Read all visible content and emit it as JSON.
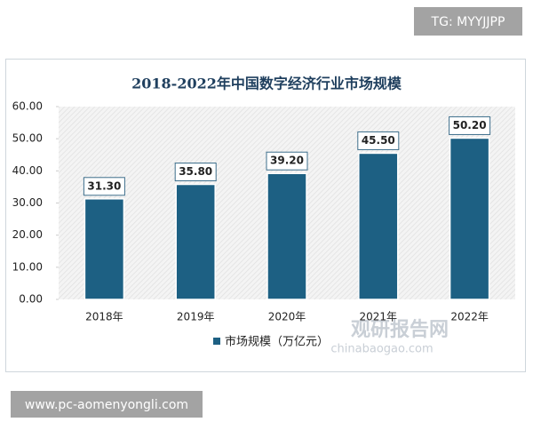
{
  "tag": "TG: MYYJJPP",
  "footer_link": "www.pc-aomenyongli.com",
  "watermark": {
    "name": "观研报告网",
    "site": "chinabaogao.com"
  },
  "chart_data": {
    "type": "bar",
    "title": "2018-2022年中国数字经济行业市场规模",
    "categories": [
      "2018年",
      "2019年",
      "2020年",
      "2021年",
      "2022年"
    ],
    "series": [
      {
        "name": "市场规模（万亿元）",
        "color": "#1d6083",
        "values": [
          31.3,
          35.8,
          39.2,
          45.5,
          50.2
        ],
        "value_labels": [
          "31.30",
          "35.80",
          "39.20",
          "45.50",
          "50.20"
        ]
      }
    ],
    "ylim": [
      0,
      60
    ],
    "yticks": [
      {
        "value": 0,
        "label": "0.00"
      },
      {
        "value": 10,
        "label": "10.00"
      },
      {
        "value": 20,
        "label": "20.00"
      },
      {
        "value": 30,
        "label": "30.00"
      },
      {
        "value": 40,
        "label": "40.00"
      },
      {
        "value": 50,
        "label": "50.00"
      },
      {
        "value": 60,
        "label": "60.00"
      }
    ],
    "legend": "bottom"
  }
}
